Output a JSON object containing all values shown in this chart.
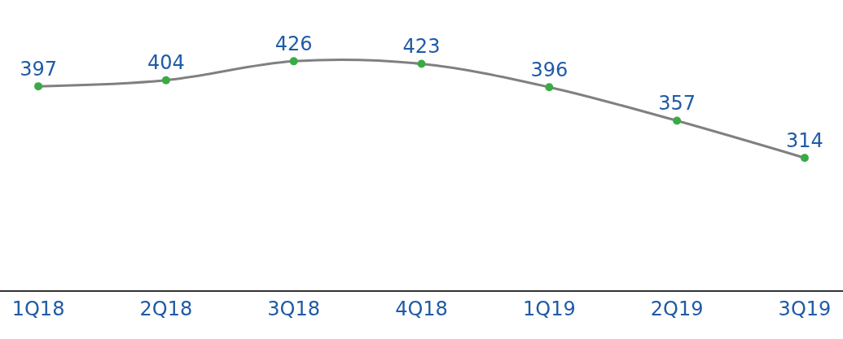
{
  "chart_data": {
    "type": "line",
    "categories": [
      "1Q18",
      "2Q18",
      "3Q18",
      "4Q18",
      "1Q19",
      "2Q19",
      "3Q19"
    ],
    "series": [
      {
        "color": "#808080",
        "values": [
          397,
          404,
          426,
          423,
          396,
          357,
          314
        ]
      }
    ],
    "marker": "circle",
    "data_labels": true
  }
}
